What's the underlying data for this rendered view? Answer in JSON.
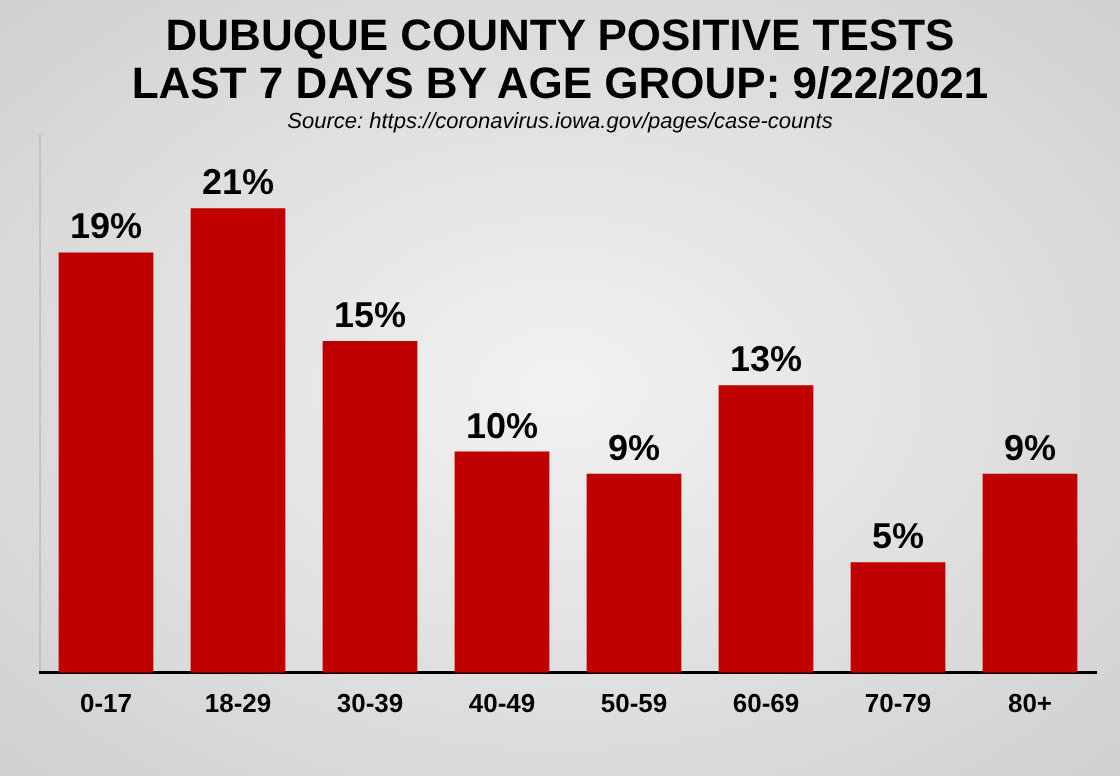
{
  "chart_data": {
    "type": "bar",
    "title": "DUBUQUE COUNTY POSITIVE TESTS\nLAST 7 DAYS BY AGE GROUP: 9/22/2021",
    "annotations": [
      "Source: https://coronavirus.iowa.gov/pages/case-counts"
    ],
    "categories": [
      "0-17",
      "18-29",
      "30-39",
      "40-49",
      "50-59",
      "60-69",
      "70-79",
      "80+"
    ],
    "values": [
      19,
      21,
      15,
      10,
      9,
      13,
      5,
      9
    ],
    "value_labels": [
      "19%",
      "21%",
      "15%",
      "10%",
      "9%",
      "13%",
      "5%",
      "9%"
    ],
    "color": "#c00000",
    "relative": false,
    "grid": false,
    "legend": false
  }
}
